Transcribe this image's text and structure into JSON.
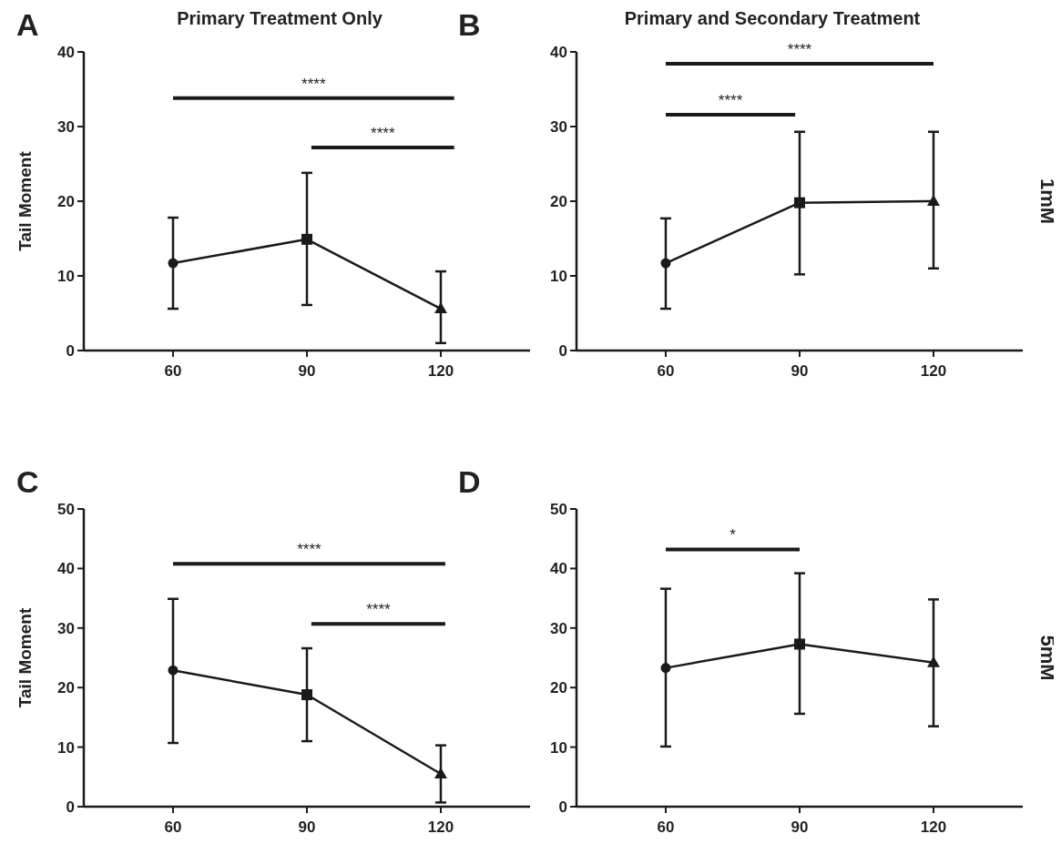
{
  "chart_data": [
    {
      "type": "line",
      "title": "Primary Treatment Only",
      "ylabel": "Tail Moment",
      "xlim": [
        40,
        140
      ],
      "xticks": [
        60,
        90,
        120
      ],
      "ylim": [
        0,
        40
      ],
      "yticks": [
        0,
        10,
        20,
        30,
        40
      ],
      "grid": false,
      "annotations": [
        "A",
        "****",
        "****"
      ],
      "series": [
        {
          "color": "#1a1a1a",
          "x": [
            60,
            90,
            120
          ],
          "values": [
            11.7,
            14.9,
            5.6
          ],
          "marker": "none"
        },
        {
          "type": "scatter",
          "color": "#1a1a1a",
          "x": [
            60
          ],
          "values": [
            11.7
          ],
          "errors": [
            [
              5.6,
              17.8
            ]
          ],
          "marker": "circle"
        },
        {
          "type": "scatter",
          "color": "#1a1a1a",
          "x": [
            90
          ],
          "values": [
            14.9
          ],
          "errors": [
            [
              6.1,
              23.8
            ]
          ],
          "marker": "square"
        },
        {
          "type": "scatter",
          "color": "#1a1a1a",
          "x": [
            120
          ],
          "values": [
            5.6
          ],
          "errors": [
            [
              1.0,
              10.6
            ]
          ],
          "marker": "triangle"
        }
      ]
    },
    {
      "type": "line",
      "title": "Primary and Secondary Treatment",
      "xlim": [
        40,
        140
      ],
      "xticks": [
        60,
        90,
        120
      ],
      "ylim": [
        0,
        40
      ],
      "yticks": [
        0,
        10,
        20,
        30,
        40
      ],
      "grid": false,
      "annotations": [
        "B",
        "****",
        "****",
        "1mM"
      ],
      "series": [
        {
          "color": "#1a1a1a",
          "x": [
            60,
            90,
            120
          ],
          "values": [
            11.7,
            19.8,
            20.0
          ],
          "marker": "none"
        },
        {
          "type": "scatter",
          "color": "#1a1a1a",
          "x": [
            60
          ],
          "values": [
            11.7
          ],
          "errors": [
            [
              5.6,
              17.7
            ]
          ],
          "marker": "circle"
        },
        {
          "type": "scatter",
          "color": "#1a1a1a",
          "x": [
            90
          ],
          "values": [
            19.8
          ],
          "errors": [
            [
              10.2,
              29.3
            ]
          ],
          "marker": "square"
        },
        {
          "type": "scatter",
          "color": "#1a1a1a",
          "x": [
            120
          ],
          "values": [
            20.0
          ],
          "errors": [
            [
              11.0,
              29.3
            ]
          ],
          "marker": "triangle"
        }
      ]
    },
    {
      "type": "line",
      "ylabel": "Tail Moment",
      "xlim": [
        40,
        140
      ],
      "xticks": [
        60,
        90,
        120
      ],
      "ylim": [
        0,
        50
      ],
      "yticks": [
        0,
        10,
        20,
        30,
        40,
        50
      ],
      "grid": false,
      "annotations": [
        "C",
        "****",
        "****"
      ],
      "series": [
        {
          "color": "#1a1a1a",
          "x": [
            60,
            90,
            120
          ],
          "values": [
            22.9,
            18.8,
            5.5
          ],
          "marker": "none"
        },
        {
          "type": "scatter",
          "color": "#1a1a1a",
          "x": [
            60
          ],
          "values": [
            22.9
          ],
          "errors": [
            [
              10.7,
              34.9
            ]
          ],
          "marker": "circle"
        },
        {
          "type": "scatter",
          "color": "#1a1a1a",
          "x": [
            90
          ],
          "values": [
            18.8
          ],
          "errors": [
            [
              11.0,
              26.6
            ]
          ],
          "marker": "square"
        },
        {
          "type": "scatter",
          "color": "#1a1a1a",
          "x": [
            120
          ],
          "values": [
            5.5
          ],
          "errors": [
            [
              0.7,
              10.3
            ]
          ],
          "marker": "triangle"
        }
      ]
    },
    {
      "type": "line",
      "xlim": [
        40,
        140
      ],
      "xticks": [
        60,
        90,
        120
      ],
      "ylim": [
        0,
        50
      ],
      "yticks": [
        0,
        10,
        20,
        30,
        40,
        50
      ],
      "grid": false,
      "annotations": [
        "D",
        "*",
        "5mM"
      ],
      "series": [
        {
          "color": "#1a1a1a",
          "x": [
            60,
            90,
            120
          ],
          "values": [
            23.3,
            27.3,
            24.2
          ],
          "marker": "none"
        },
        {
          "type": "scatter",
          "color": "#1a1a1a",
          "x": [
            60
          ],
          "values": [
            23.3
          ],
          "errors": [
            [
              10.1,
              36.6
            ]
          ],
          "marker": "circle"
        },
        {
          "type": "scatter",
          "color": "#1a1a1a",
          "x": [
            90
          ],
          "values": [
            27.3
          ],
          "errors": [
            [
              15.6,
              39.2
            ]
          ],
          "marker": "square"
        },
        {
          "type": "scatter",
          "color": "#1a1a1a",
          "x": [
            120
          ],
          "values": [
            24.2
          ],
          "errors": [
            [
              13.5,
              34.8
            ]
          ],
          "marker": "triangle"
        }
      ]
    }
  ]
}
